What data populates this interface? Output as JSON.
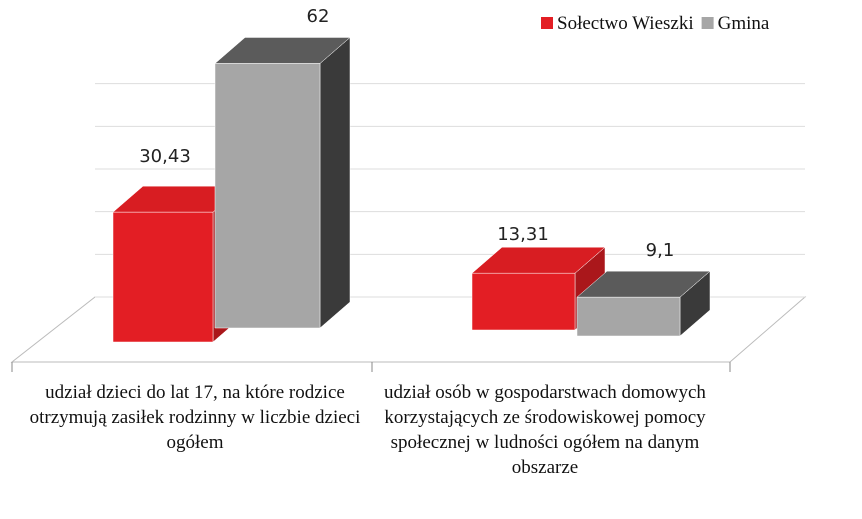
{
  "chart_data": {
    "type": "bar3d",
    "categories": [
      "udział dzieci do lat 17, na które rodzice otrzymują zasiłek rodzinny w liczbie dzieci ogółem",
      "udział osób w gospodarstwach domowych korzystających ze środowiskowej pomocy społecznej w ludności ogółem na danym obszarze"
    ],
    "series": [
      {
        "name": "Sołectwo Wieszki",
        "color": "#e31e24",
        "values": [
          30.43,
          13.31
        ],
        "value_labels": [
          "30,43",
          "13,31"
        ]
      },
      {
        "name": "Gmina",
        "color": "#a6a6a6",
        "values": [
          62,
          9.1
        ],
        "value_labels": [
          "62",
          "9,1"
        ]
      }
    ],
    "ylim": [
      0,
      60
    ],
    "yticks": [
      0,
      10,
      20,
      30,
      40,
      50
    ],
    "grid": true,
    "legend": "top-right"
  }
}
